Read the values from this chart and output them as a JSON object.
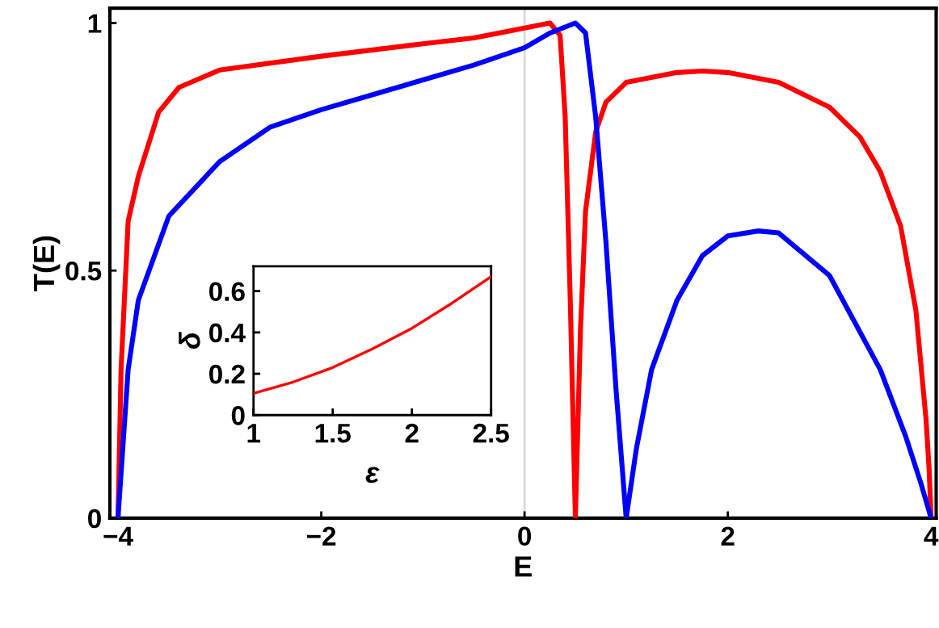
{
  "chart_data": [
    {
      "type": "line",
      "xlabel": "E",
      "ylabel": "T(E)",
      "xlim": [
        -4.08,
        4.05
      ],
      "ylim": [
        0,
        1.03
      ],
      "xticks": [
        {
          "value": -4,
          "label": "−4"
        },
        {
          "value": -2,
          "label": "−2"
        },
        0,
        2,
        4
      ],
      "yticks": [
        0,
        0.5,
        1
      ],
      "grid": false,
      "legend": false,
      "line_style": "solid",
      "marker": "none",
      "ref_lines": [
        {
          "axis": "x",
          "value": 0,
          "color": "#d9d9d9"
        }
      ],
      "series": [
        {
          "color": "#ff0000",
          "x": [
            -4,
            -3.97,
            -3.9,
            -3.8,
            -3.6,
            -3.4,
            -3,
            -2,
            -1,
            -0.5,
            0,
            0.25,
            0.35,
            0.4,
            0.45,
            0.5,
            0.55,
            0.6,
            0.7,
            0.8,
            1,
            1.5,
            1.75,
            2,
            2.5,
            3,
            3.3,
            3.5,
            3.7,
            3.85,
            3.95,
            3.98,
            4
          ],
          "values": [
            0,
            0.3,
            0.6,
            0.69,
            0.82,
            0.87,
            0.905,
            0.933,
            0.958,
            0.97,
            0.99,
            1.0,
            0.975,
            0.81,
            0.44,
            0,
            0.38,
            0.62,
            0.78,
            0.84,
            0.88,
            0.9,
            0.903,
            0.9,
            0.88,
            0.83,
            0.77,
            0.7,
            0.59,
            0.42,
            0.2,
            0.1,
            0
          ]
        },
        {
          "color": "#0000ff",
          "x": [
            -4,
            -3.9,
            -3.8,
            -3.5,
            -3,
            -2.5,
            -2,
            -1.5,
            -1,
            -0.5,
            0,
            0.25,
            0.5,
            0.6,
            0.7,
            0.8,
            0.9,
            1,
            1.1,
            1.25,
            1.5,
            1.75,
            2,
            2.3,
            2.5,
            3,
            3.5,
            3.75,
            3.9,
            4
          ],
          "values": [
            0,
            0.3,
            0.44,
            0.61,
            0.72,
            0.79,
            0.825,
            0.855,
            0.885,
            0.915,
            0.95,
            0.98,
            1.0,
            0.98,
            0.81,
            0.56,
            0.26,
            0,
            0.14,
            0.3,
            0.44,
            0.53,
            0.57,
            0.58,
            0.576,
            0.49,
            0.3,
            0.165,
            0.07,
            0
          ]
        }
      ]
    },
    {
      "type": "line",
      "xlabel": "ε",
      "ylabel": "δ",
      "xlim": [
        1,
        2.5
      ],
      "ylim": [
        0,
        0.72
      ],
      "xticks": [
        1,
        1.5,
        2,
        2.5
      ],
      "yticks": [
        0,
        0.2,
        0.4,
        0.6
      ],
      "grid": false,
      "legend": false,
      "line_style": "solid",
      "marker": "none",
      "series": [
        {
          "color": "#ff0000",
          "x": [
            1,
            1.25,
            1.5,
            1.75,
            2,
            2.25,
            2.5
          ],
          "values": [
            0.105,
            0.16,
            0.23,
            0.32,
            0.42,
            0.54,
            0.67
          ]
        }
      ]
    }
  ]
}
